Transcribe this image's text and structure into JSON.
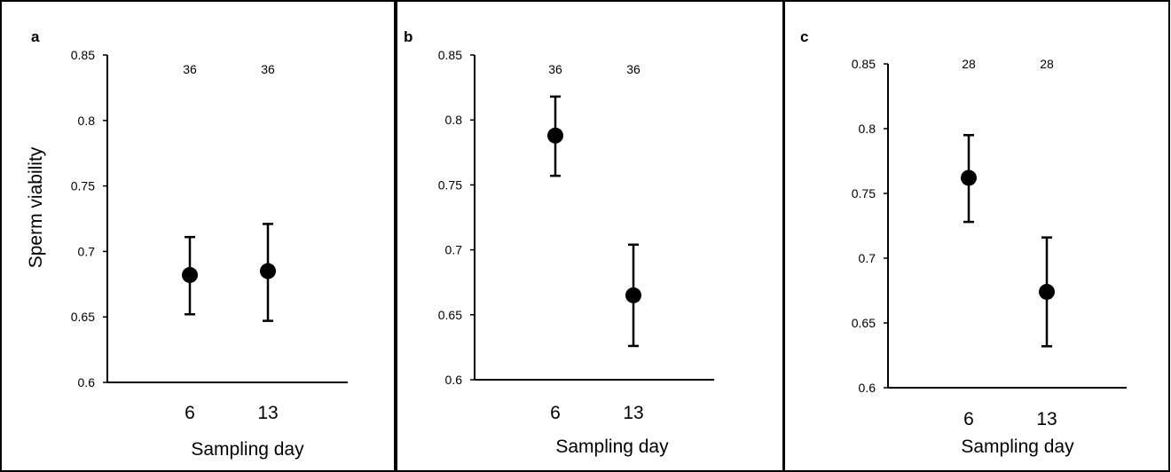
{
  "chart_data": [
    {
      "type": "scatter",
      "panel_label": "a",
      "ylabel": "Sperm viability",
      "xlabel": "Sampling day",
      "categories": [
        "6",
        "13"
      ],
      "ylim": [
        0.6,
        0.85
      ],
      "yticks": [
        "0.6",
        "0.65",
        "0.7",
        "0.75",
        "0.8",
        "0.85"
      ],
      "values": [
        0.682,
        0.685
      ],
      "error_low": [
        0.652,
        0.647
      ],
      "error_high": [
        0.711,
        0.721
      ],
      "n_labels": [
        "36",
        "36"
      ]
    },
    {
      "type": "scatter",
      "panel_label": "b",
      "ylabel": "",
      "xlabel": "Sampling day",
      "categories": [
        "6",
        "13"
      ],
      "ylim": [
        0.6,
        0.85
      ],
      "yticks": [
        "0.6",
        "0.65",
        "0.7",
        "0.75",
        "0.8",
        "0.85"
      ],
      "values": [
        0.788,
        0.665
      ],
      "error_low": [
        0.757,
        0.626
      ],
      "error_high": [
        0.818,
        0.704
      ],
      "n_labels": [
        "36",
        "36"
      ]
    },
    {
      "type": "scatter",
      "panel_label": "c",
      "ylabel": "",
      "xlabel": "Sampling day",
      "categories": [
        "6",
        "13"
      ],
      "ylim": [
        0.6,
        0.85
      ],
      "yticks": [
        "0.6",
        "0.65",
        "0.7",
        "0.75",
        "0.8",
        "0.85"
      ],
      "values": [
        0.762,
        0.674
      ],
      "error_low": [
        0.728,
        0.632
      ],
      "error_high": [
        0.795,
        0.716
      ],
      "n_labels": [
        "28",
        "28"
      ]
    }
  ]
}
